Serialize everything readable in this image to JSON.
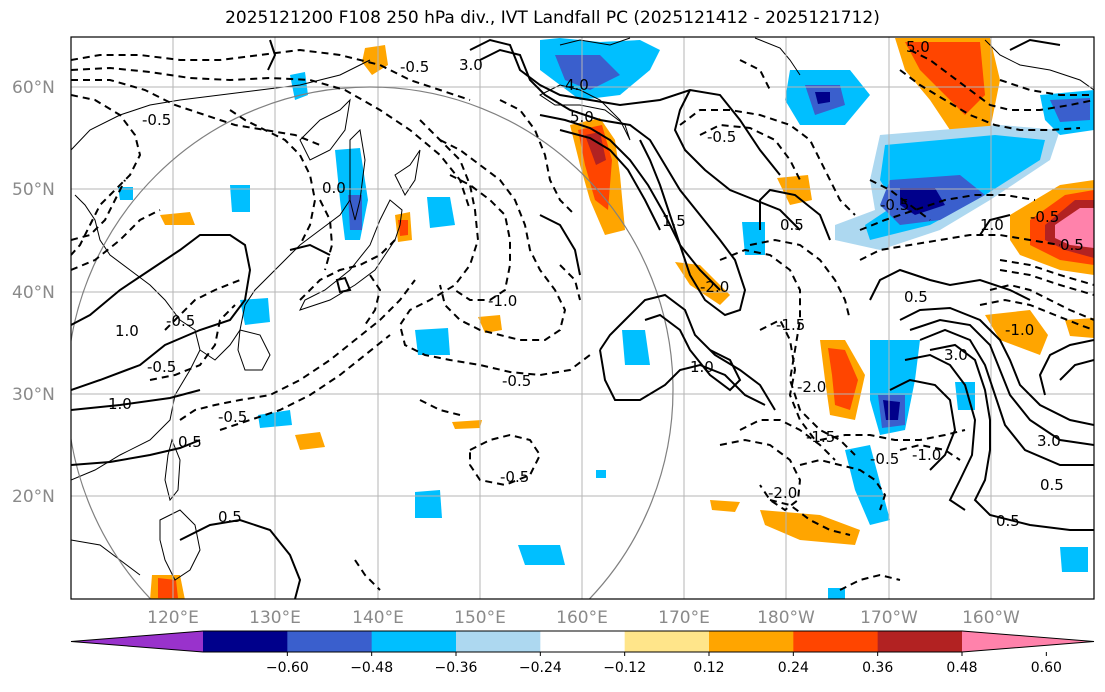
{
  "title": "2025121200 F108 250 hPa div., IVT Landfall PC (2025121412 - 2025121712)",
  "lat_labels": [
    "60°N",
    "50°N",
    "40°N",
    "30°N",
    "20°N"
  ],
  "lon_labels": [
    "120°E",
    "130°E",
    "140°E",
    "150°E",
    "160°E",
    "170°E",
    "180°W",
    "170°W",
    "160°W"
  ],
  "colorbar": {
    "ticks": [
      "−0.60",
      "−0.48",
      "−0.36",
      "−0.24",
      "−0.12",
      "0.12",
      "0.24",
      "0.36",
      "0.48",
      "0.60"
    ],
    "colors": [
      "#9932cc",
      "#00008b",
      "#3a5fcd",
      "#00bfff",
      "#add8f0",
      "#ffffff",
      "#ffe58a",
      "#ffa500",
      "#ff4500",
      "#b22222",
      "#ff82ab"
    ]
  },
  "contour_labels": [
    "3.0",
    "5.0",
    "4.0",
    "5.0",
    "-0.5",
    "1.5",
    "-0.5",
    "-2.0",
    "-1.5",
    "-0.5",
    "0.5",
    "-0.5",
    "-1.0",
    "-0.5",
    "0.5",
    "1.0",
    "-0.5",
    "0.5",
    "-0.5",
    "1.0",
    "1.0",
    "-0.5",
    "-1.0",
    "-2.0",
    "-2.0",
    "-1.5",
    "1.0",
    "3.0",
    "-0.5",
    "0.5",
    "-1.0",
    "3.0",
    "0.5",
    "-0.5",
    "-0.5",
    "0.5",
    "0.5",
    "0.0"
  ]
}
